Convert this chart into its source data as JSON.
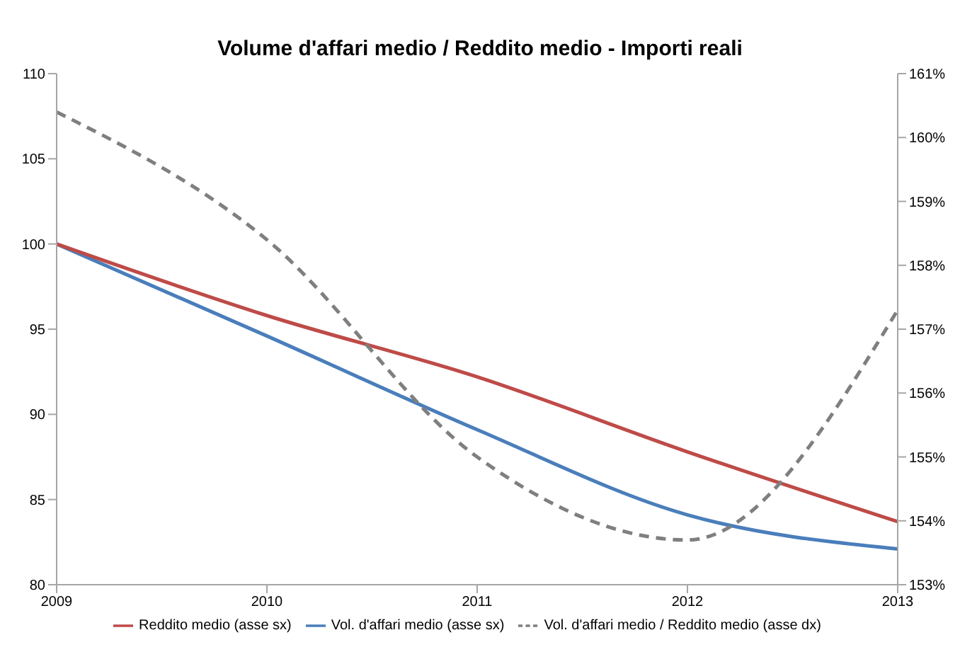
{
  "chart_data": {
    "type": "line",
    "title": "Volume d'affari medio / Reddito medio - Importi reali",
    "categories": [
      "2009",
      "2010",
      "2011",
      "2012",
      "2013"
    ],
    "series": [
      {
        "name": "Vol. d'affari medio (asse sx)",
        "color": "#4a7ebb",
        "values": [
          100,
          94.6,
          89.1,
          84.1,
          82.1
        ]
      },
      {
        "name": "Reddito medio (asse sx)",
        "color": "#be4b48",
        "values": [
          100,
          95.8,
          92.2,
          87.8,
          83.7
        ]
      },
      {
        "name": "Vol. d'affari medio / Reddito medio (asse dx)",
        "color": "#7f7f7f",
        "values": [
          160.4,
          158.4,
          155.0,
          153.7,
          157.3
        ],
        "axis": "y2",
        "line_style": "dashed"
      }
    ],
    "ylim": [
      80,
      110
    ],
    "yticks": [
      80,
      85,
      90,
      95,
      100,
      105,
      110
    ],
    "y2lim": [
      153,
      161
    ],
    "y2ticks": [
      {
        "value": 153,
        "label": "153%"
      },
      {
        "value": 154,
        "label": "154%"
      },
      {
        "value": 155,
        "label": "155%"
      },
      {
        "value": 156,
        "label": "156%"
      },
      {
        "value": 157,
        "label": "157%"
      },
      {
        "value": 158,
        "label": "158%"
      },
      {
        "value": 159,
        "label": "159%"
      },
      {
        "value": 160,
        "label": "160%"
      },
      {
        "value": 161,
        "label": "161%"
      }
    ],
    "grid": false,
    "legend": "bottom",
    "marker": "none"
  }
}
